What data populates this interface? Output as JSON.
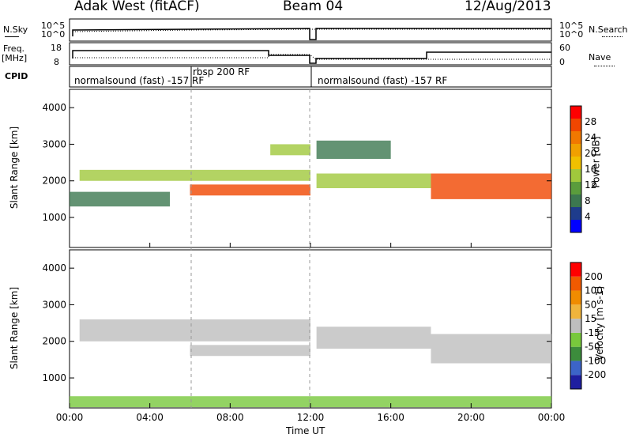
{
  "header": {
    "station": "Adak West (fitACF)",
    "beam": "Beam 04",
    "date": "12/Aug/2013"
  },
  "top_panels": {
    "nsky_label": "N.Sky",
    "nsearch_label": "N.Search",
    "nsky_ticks": [
      "10^5",
      "10^0"
    ],
    "nsearch_ticks": [
      "10^5",
      "10^0"
    ],
    "freq_label": "Freq.",
    "freq_unit": "[MHz]",
    "freq_ticks": [
      "18",
      "8"
    ],
    "nave_label": "Nave",
    "nave_ticks": [
      "60",
      "0"
    ],
    "cpid_label": "CPID",
    "cpid_segments": [
      "normalsound (fast) -157 RF",
      "rbsp 200 RF",
      "normalsound (fast) -157 RF"
    ]
  },
  "colorbars": {
    "power": {
      "label": "Power [dB]",
      "ticks": [
        "28",
        "24",
        "20",
        "16",
        "12",
        "8",
        "4"
      ],
      "colors": [
        "#0000ff",
        "#1e3c8c",
        "#3c7850",
        "#5a9c3c",
        "#a0c83c",
        "#f0c000",
        "#f0a000",
        "#f07800",
        "#f04600",
        "#ff0000"
      ]
    },
    "velocity": {
      "label": "Velocity [m s-1]",
      "ticks": [
        "200",
        "100",
        "50",
        "15",
        "-15",
        "-50",
        "-100",
        "-200"
      ],
      "colors": [
        "#1e1ea0",
        "#3c64c8",
        "#3c8c3c",
        "#78c83c",
        "#bebebe",
        "#f0b43c",
        "#f08c00",
        "#f05a00",
        "#ff0000"
      ]
    }
  },
  "axes": {
    "ylabel": "Slant Range [km]",
    "yticks": [
      "4000",
      "3000",
      "2000",
      "1000"
    ],
    "xticks": [
      "00:00",
      "04:00",
      "08:00",
      "12:00",
      "16:00",
      "20:00",
      "00:00"
    ],
    "xlabel": "Time UT"
  },
  "chart_data": {
    "type": "heatmap",
    "title": "Adak West (fitACF) Beam 04 12/Aug/2013",
    "xlabel": "Time UT",
    "ylabel": "Slant Range [km]",
    "x_range_hours": [
      0,
      24
    ],
    "y_range_km": [
      180,
      4500
    ],
    "panels": [
      {
        "name": "Power [dB]",
        "clim": [
          0,
          30
        ],
        "echo_bands": [
          {
            "t_start": 0.5,
            "t_end": 12.0,
            "range_km": [
              2000,
              2300
            ],
            "power_db": 12
          },
          {
            "t_start": 6.0,
            "t_end": 12.0,
            "range_km": [
              1600,
              1900
            ],
            "power_db": 26
          },
          {
            "t_start": 0.0,
            "t_end": 5.0,
            "range_km": [
              1300,
              1700
            ],
            "power_db": 8
          },
          {
            "t_start": 10.0,
            "t_end": 12.0,
            "range_km": [
              2700,
              3000
            ],
            "power_db": 14
          },
          {
            "t_start": 12.3,
            "t_end": 18.0,
            "range_km": [
              1800,
              2200
            ],
            "power_db": 14
          },
          {
            "t_start": 18.0,
            "t_end": 24.0,
            "range_km": [
              1500,
              2200
            ],
            "power_db": 24
          },
          {
            "t_start": 12.3,
            "t_end": 16.0,
            "range_km": [
              2600,
              3100
            ],
            "power_db": 8
          }
        ]
      },
      {
        "name": "Velocity [m s-1]",
        "clim": [
          -200,
          200
        ],
        "echo_bands": [
          {
            "t_start": 0.5,
            "t_end": 12.0,
            "range_km": [
              2000,
              2600
            ],
            "velocity": 0
          },
          {
            "t_start": 6.0,
            "t_end": 12.0,
            "range_km": [
              1600,
              1900
            ],
            "velocity": 0
          },
          {
            "t_start": 12.3,
            "t_end": 18.0,
            "range_km": [
              1800,
              2400
            ],
            "velocity": 0
          },
          {
            "t_start": 18.0,
            "t_end": 24.0,
            "range_km": [
              1400,
              2200
            ],
            "velocity": -10
          },
          {
            "t_start": 0.0,
            "t_end": 24.0,
            "range_km": [
              200,
              500
            ],
            "velocity": 30
          }
        ]
      }
    ]
  }
}
